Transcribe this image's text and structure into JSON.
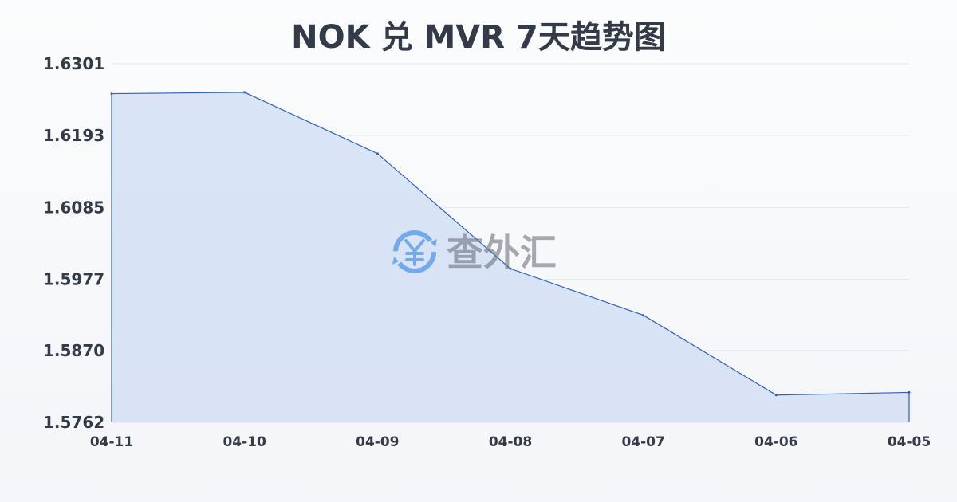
{
  "chart_data": {
    "type": "area",
    "title": "NOK 兑 MVR 7天趋势图",
    "categories": [
      "04-11",
      "04-10",
      "04-09",
      "04-08",
      "04-07",
      "04-06",
      "04-05"
    ],
    "values": [
      1.6256,
      1.6258,
      1.6166,
      1.5993,
      1.5923,
      1.5803,
      1.5807
    ],
    "yticks": [
      "1.6301",
      "1.6193",
      "1.6085",
      "1.5977",
      "1.5870",
      "1.5762"
    ],
    "ylim": [
      1.5762,
      1.6301
    ],
    "grid": true,
    "legend": "none",
    "colors": {
      "line": "#2f5fbf",
      "fill": "#d4dff5",
      "grid": "#e3e7ee",
      "text": "#333b48"
    }
  },
  "watermark": {
    "text": "查外汇",
    "icon": "yen-exchange-icon",
    "color": "#5b9be8"
  }
}
